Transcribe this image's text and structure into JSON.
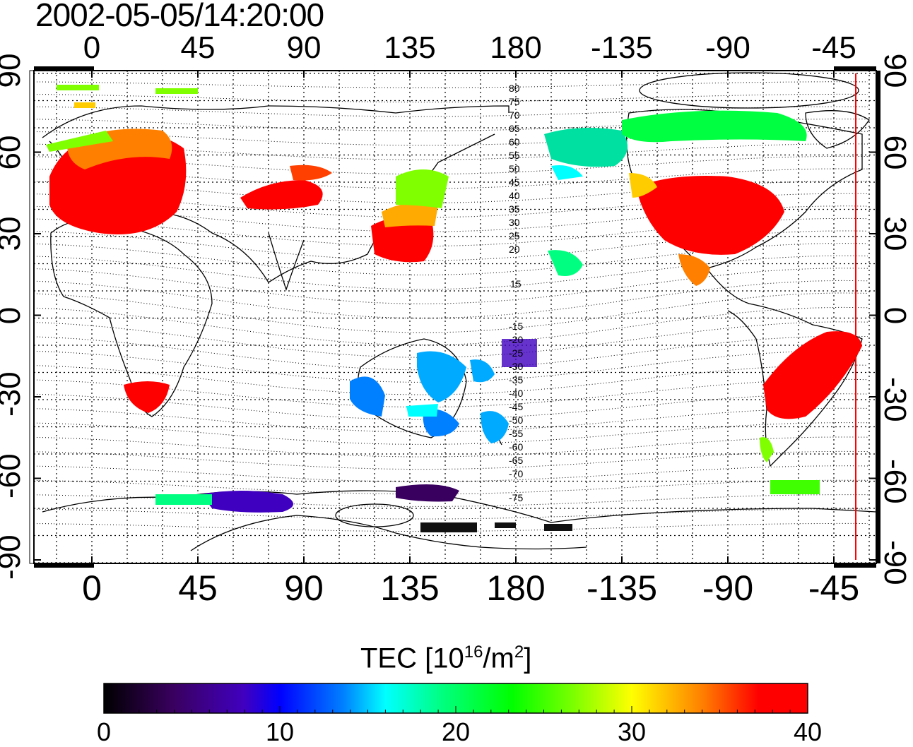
{
  "title": "2002-05-05/14:20:00",
  "axes": {
    "lon_ticks": [
      "0",
      "45",
      "90",
      "135",
      "180",
      "-135",
      "-90",
      "-45"
    ],
    "lat_ticks": [
      "90",
      "60",
      "30",
      "0",
      "-30",
      "-60",
      "-90"
    ]
  },
  "contour_labels_north": [
    "80",
    "75",
    "70",
    "65",
    "60",
    "55",
    "50",
    "45",
    "40",
    "35",
    "30",
    "25",
    "20",
    "15"
  ],
  "contour_labels_south": [
    "-15",
    "-20",
    "-25",
    "-30",
    "-35",
    "-40",
    "-45",
    "-50",
    "-55",
    "-60",
    "-65",
    "-70",
    "-75"
  ],
  "colorbar": {
    "title_prefix": "TEC  [10",
    "title_exp1": "16",
    "title_mid": "/m",
    "title_exp2": "2",
    "title_suffix": "]",
    "ticks": [
      "0",
      "10",
      "20",
      "30",
      "40"
    ],
    "range": [
      0,
      40
    ],
    "colors": [
      "#000000",
      "#3a0060",
      "#4000c0",
      "#0000ff",
      "#0080ff",
      "#00ffff",
      "#00ff80",
      "#00ff00",
      "#80ff00",
      "#ffff00",
      "#ff8000",
      "#ff0000"
    ]
  },
  "terminator_color": "#ff0000"
}
